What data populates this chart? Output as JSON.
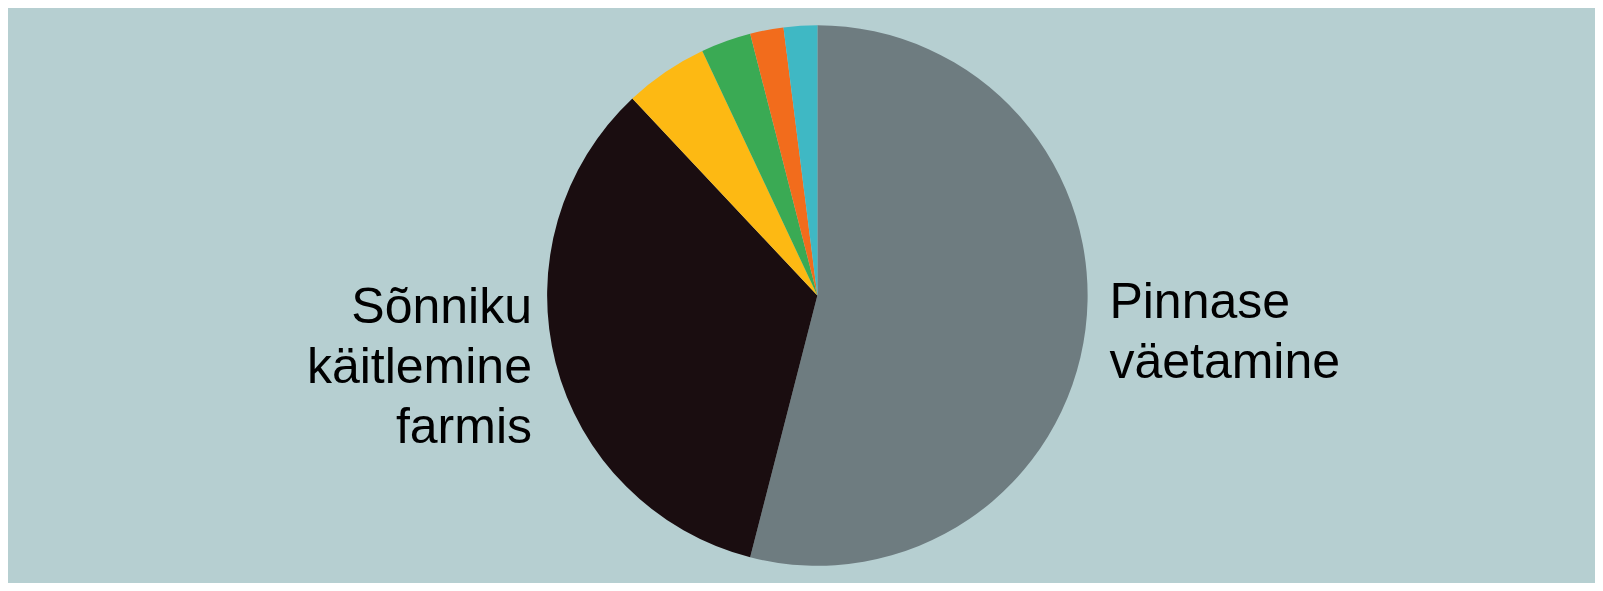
{
  "chart_data": {
    "type": "pie",
    "categories": [
      "Pinnase väetamine",
      "Sõnniku käitlemine farmis",
      null,
      null,
      null,
      null
    ],
    "values": [
      54,
      34,
      5,
      3,
      2,
      2
    ],
    "colors": [
      "#6e7c80",
      "#1a0d10",
      "#fdb913",
      "#3aaa54",
      "#f26c1c",
      "#3fb8c4"
    ]
  }
}
